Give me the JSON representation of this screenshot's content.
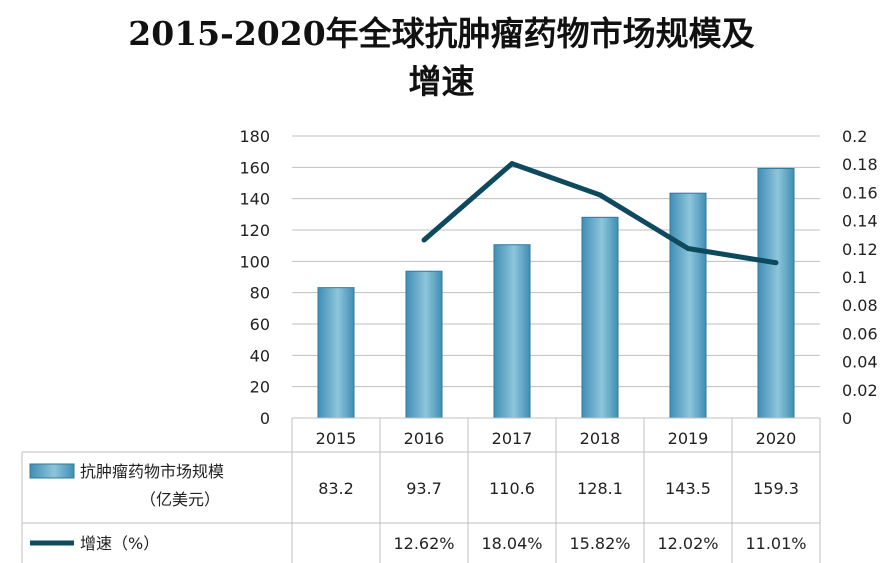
{
  "title": {
    "line1": "2015-2020年全球抗肿瘤药物市场规模及",
    "line2": "增速"
  },
  "colors": {
    "bar_light": "#8ec5dc",
    "bar_dark": "#3f8fb3",
    "line": "#0e4a5e",
    "grid": "#bfbfbf"
  },
  "chart_data": {
    "type": "bar",
    "categories": [
      "2015",
      "2016",
      "2017",
      "2018",
      "2019",
      "2020"
    ],
    "series": [
      {
        "name": "抗肿瘤药物市场规模\n（亿美元）",
        "kind": "bar",
        "axis": "left",
        "values": [
          83.2,
          93.7,
          110.6,
          128.1,
          143.5,
          159.3
        ],
        "labels": [
          "83.2",
          "93.7",
          "110.6",
          "128.1",
          "143.5",
          "159.3"
        ]
      },
      {
        "name": "增速（%）",
        "kind": "line",
        "axis": "right",
        "values": [
          null,
          0.1262,
          0.1804,
          0.1582,
          0.1202,
          0.1101
        ],
        "labels": [
          "",
          "12.62%",
          "18.04%",
          "15.82%",
          "12.02%",
          "11.01%"
        ]
      }
    ],
    "y_left": {
      "ylim": [
        0,
        180
      ],
      "ticks": [
        "0",
        "20",
        "40",
        "60",
        "80",
        "100",
        "120",
        "140",
        "160",
        "180"
      ]
    },
    "y_right": {
      "ylim": [
        0,
        0.2
      ],
      "ticks": [
        "0",
        "0.02",
        "0.04",
        "0.06",
        "0.08",
        "0.1",
        "0.12",
        "0.14",
        "0.16",
        "0.18",
        "0.2"
      ]
    },
    "grid": true,
    "legend": "data-table-left"
  }
}
